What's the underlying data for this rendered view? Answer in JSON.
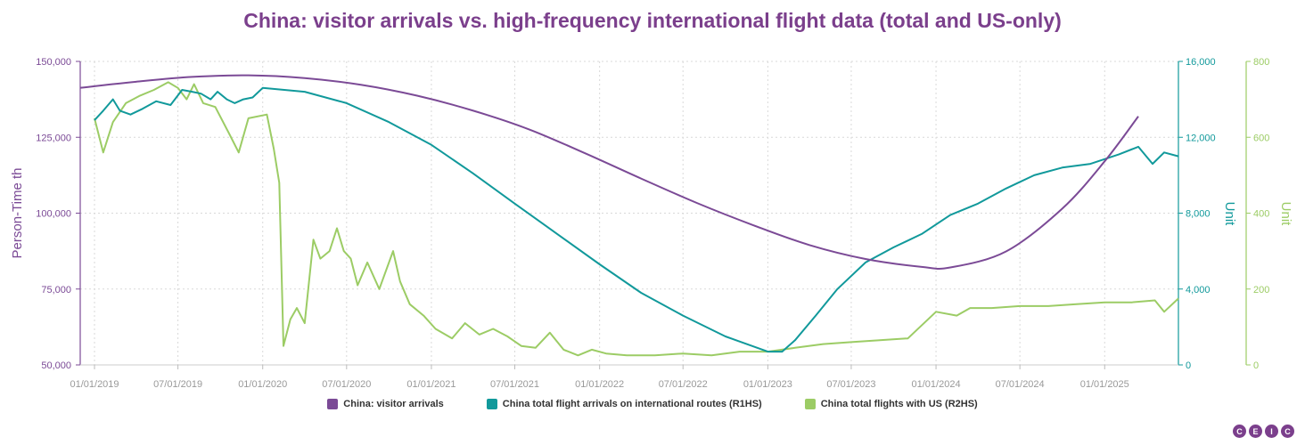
{
  "title": "China: visitor arrivals vs. high-frequency international flight data (total and US-only)",
  "colors": {
    "title": "#7b3f8c",
    "purple": "#7b4a96",
    "teal": "#11999b",
    "green": "#9ccc65",
    "grid": "#d9d9d9",
    "tick": "#999999"
  },
  "logo": {
    "letters": [
      "C",
      "E",
      "I",
      "C"
    ],
    "color": "#7b3f8c"
  },
  "chart_data": {
    "type": "line",
    "title": "China: visitor arrivals vs. high-frequency international flight data (total and US-only)",
    "x_tick_labels": [
      "01/01/2019",
      "07/01/2019",
      "01/01/2020",
      "07/01/2020",
      "01/01/2021",
      "07/01/2021",
      "01/01/2022",
      "07/01/2022",
      "01/01/2023",
      "07/01/2023",
      "01/01/2024",
      "07/01/2024",
      "01/01/2025"
    ],
    "x_range": [
      "2018-12-01",
      "2025-06-10"
    ],
    "grid": true,
    "legend_position": "bottom",
    "axes": {
      "left": {
        "label": "Person-Time th",
        "range": [
          50000,
          150000
        ],
        "ticks": [
          "50,000",
          "75,000",
          "100,000",
          "125,000",
          "150,000"
        ]
      },
      "right1": {
        "label": "Unit",
        "range": [
          0,
          16000
        ],
        "ticks": [
          "0",
          "4,000",
          "8,000",
          "12,000",
          "16,000"
        ]
      },
      "right2": {
        "label": "Unit",
        "range": [
          0,
          800
        ],
        "ticks": [
          "0",
          "200",
          "400",
          "600",
          "800"
        ]
      }
    },
    "series": [
      {
        "name": "China: visitor arrivals",
        "axis": "left",
        "points": [
          [
            "2018-12-01",
            141300
          ],
          [
            "2019-04-01",
            143300
          ],
          [
            "2019-08-01",
            144900
          ],
          [
            "2019-12-01",
            145400
          ],
          [
            "2020-04-01",
            144500
          ],
          [
            "2020-08-01",
            142300
          ],
          [
            "2020-12-01",
            138700
          ],
          [
            "2021-04-01",
            133800
          ],
          [
            "2021-08-01",
            127600
          ],
          [
            "2021-12-01",
            119700
          ],
          [
            "2022-04-01",
            111400
          ],
          [
            "2022-08-01",
            103300
          ],
          [
            "2022-12-01",
            96000
          ],
          [
            "2023-04-01",
            89500
          ],
          [
            "2023-08-01",
            84900
          ],
          [
            "2023-12-01",
            82300
          ],
          [
            "2024-02-01",
            82100
          ],
          [
            "2024-06-01",
            87400
          ],
          [
            "2024-10-01",
            101500
          ],
          [
            "2025-01-01",
            117100
          ],
          [
            "2025-03-15",
            131900
          ]
        ]
      },
      {
        "name": "China total flight arrivals on international routes (R1HS)",
        "axis": "right1",
        "points": [
          [
            "2019-01-01",
            12900
          ],
          [
            "2019-01-20",
            13400
          ],
          [
            "2019-02-10",
            14000
          ],
          [
            "2019-02-25",
            13400
          ],
          [
            "2019-03-20",
            13200
          ],
          [
            "2019-04-15",
            13500
          ],
          [
            "2019-05-15",
            13900
          ],
          [
            "2019-06-15",
            13700
          ],
          [
            "2019-07-10",
            14500
          ],
          [
            "2019-08-01",
            14400
          ],
          [
            "2019-08-20",
            14300
          ],
          [
            "2019-09-10",
            14000
          ],
          [
            "2019-09-25",
            14400
          ],
          [
            "2019-10-15",
            14000
          ],
          [
            "2019-11-01",
            13800
          ],
          [
            "2019-11-20",
            14000
          ],
          [
            "2019-12-10",
            14100
          ],
          [
            "2020-01-01",
            14600
          ],
          [
            "2020-04-01",
            14400
          ],
          [
            "2020-07-01",
            13800
          ],
          [
            "2020-10-01",
            12800
          ],
          [
            "2021-01-01",
            11600
          ],
          [
            "2021-04-01",
            10100
          ],
          [
            "2021-07-01",
            8500
          ],
          [
            "2021-10-01",
            6900
          ],
          [
            "2022-01-01",
            5300
          ],
          [
            "2022-04-01",
            3800
          ],
          [
            "2022-07-01",
            2600
          ],
          [
            "2022-10-01",
            1500
          ],
          [
            "2023-01-01",
            700
          ],
          [
            "2023-02-01",
            700
          ],
          [
            "2023-03-01",
            1300
          ],
          [
            "2023-04-15",
            2600
          ],
          [
            "2023-06-01",
            4000
          ],
          [
            "2023-08-01",
            5400
          ],
          [
            "2023-10-01",
            6200
          ],
          [
            "2023-12-01",
            6900
          ],
          [
            "2024-02-01",
            7900
          ],
          [
            "2024-04-01",
            8500
          ],
          [
            "2024-06-01",
            9300
          ],
          [
            "2024-08-01",
            10000
          ],
          [
            "2024-10-01",
            10400
          ],
          [
            "2024-12-01",
            10600
          ],
          [
            "2025-02-01",
            11100
          ],
          [
            "2025-03-15",
            11500
          ],
          [
            "2025-04-15",
            10600
          ],
          [
            "2025-05-10",
            11200
          ],
          [
            "2025-06-10",
            11000
          ]
        ]
      },
      {
        "name": "China total flights with US (R2HS)",
        "axis": "right2",
        "points": [
          [
            "2019-01-01",
            650
          ],
          [
            "2019-01-20",
            560
          ],
          [
            "2019-02-10",
            640
          ],
          [
            "2019-03-10",
            690
          ],
          [
            "2019-04-10",
            710
          ],
          [
            "2019-05-10",
            725
          ],
          [
            "2019-06-10",
            745
          ],
          [
            "2019-07-01",
            730
          ],
          [
            "2019-07-20",
            700
          ],
          [
            "2019-08-05",
            740
          ],
          [
            "2019-08-25",
            690
          ],
          [
            "2019-09-20",
            680
          ],
          [
            "2019-10-20",
            610
          ],
          [
            "2019-11-10",
            560
          ],
          [
            "2019-12-01",
            650
          ],
          [
            "2020-01-10",
            660
          ],
          [
            "2020-01-25",
            570
          ],
          [
            "2020-02-06",
            480
          ],
          [
            "2020-02-15",
            50
          ],
          [
            "2020-03-01",
            120
          ],
          [
            "2020-03-15",
            150
          ],
          [
            "2020-04-01",
            110
          ],
          [
            "2020-04-20",
            330
          ],
          [
            "2020-05-05",
            280
          ],
          [
            "2020-05-25",
            300
          ],
          [
            "2020-06-10",
            360
          ],
          [
            "2020-06-25",
            300
          ],
          [
            "2020-07-10",
            280
          ],
          [
            "2020-07-25",
            210
          ],
          [
            "2020-08-15",
            270
          ],
          [
            "2020-09-10",
            200
          ],
          [
            "2020-10-10",
            300
          ],
          [
            "2020-10-25",
            220
          ],
          [
            "2020-11-15",
            160
          ],
          [
            "2020-12-15",
            130
          ],
          [
            "2021-01-10",
            95
          ],
          [
            "2021-02-15",
            70
          ],
          [
            "2021-03-15",
            110
          ],
          [
            "2021-04-15",
            80
          ],
          [
            "2021-05-15",
            95
          ],
          [
            "2021-06-15",
            75
          ],
          [
            "2021-07-15",
            50
          ],
          [
            "2021-08-15",
            45
          ],
          [
            "2021-09-15",
            85
          ],
          [
            "2021-10-15",
            40
          ],
          [
            "2021-11-15",
            25
          ],
          [
            "2021-12-15",
            40
          ],
          [
            "2022-01-15",
            30
          ],
          [
            "2022-03-01",
            25
          ],
          [
            "2022-05-01",
            25
          ],
          [
            "2022-07-01",
            30
          ],
          [
            "2022-09-01",
            25
          ],
          [
            "2022-11-01",
            35
          ],
          [
            "2023-01-01",
            35
          ],
          [
            "2023-03-01",
            45
          ],
          [
            "2023-05-01",
            55
          ],
          [
            "2023-07-01",
            60
          ],
          [
            "2023-09-01",
            65
          ],
          [
            "2023-11-01",
            70
          ],
          [
            "2024-01-01",
            140
          ],
          [
            "2024-02-15",
            130
          ],
          [
            "2024-03-15",
            150
          ],
          [
            "2024-05-01",
            150
          ],
          [
            "2024-07-01",
            155
          ],
          [
            "2024-09-01",
            155
          ],
          [
            "2024-11-01",
            160
          ],
          [
            "2025-01-01",
            165
          ],
          [
            "2025-03-01",
            165
          ],
          [
            "2025-04-20",
            170
          ],
          [
            "2025-05-10",
            140
          ],
          [
            "2025-06-10",
            175
          ]
        ]
      }
    ]
  }
}
